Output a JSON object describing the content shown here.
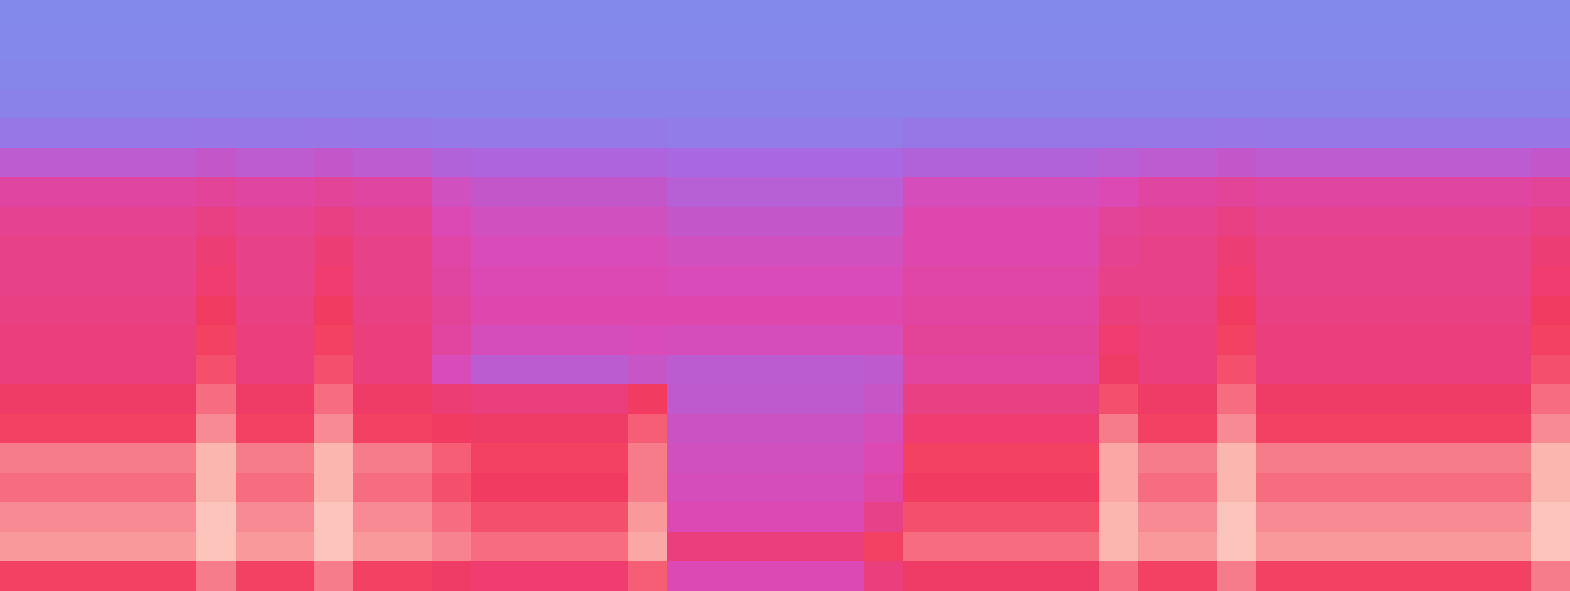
{
  "chart_data": {
    "type": "heatmap",
    "tick_labels": false,
    "xlim": [
      0,
      40
    ],
    "ylim": [
      0,
      20
    ],
    "zlim": [
      0,
      100
    ],
    "colors": [
      "#7d8eea",
      "#a868e2",
      "#dc48b4",
      "#f23a5c",
      "#fff0d8"
    ],
    "values": [
      [
        3,
        4,
        5,
        8,
        15,
        35,
        55,
        60,
        62,
        62,
        64,
        66,
        66,
        72,
        76,
        84,
        82,
        86,
        88,
        76
      ],
      [
        3,
        4,
        5,
        8,
        15,
        35,
        55,
        60,
        62,
        62,
        64,
        66,
        66,
        72,
        76,
        84,
        82,
        86,
        88,
        76
      ],
      [
        3,
        4,
        5,
        8,
        15,
        35,
        55,
        60,
        62,
        62,
        64,
        66,
        66,
        72,
        76,
        84,
        82,
        86,
        88,
        76
      ],
      [
        3,
        4,
        5,
        8,
        15,
        35,
        55,
        60,
        62,
        62,
        64,
        66,
        66,
        72,
        76,
        84,
        82,
        86,
        88,
        76
      ],
      [
        3,
        4,
        5,
        8,
        15,
        35,
        55,
        60,
        62,
        62,
        64,
        66,
        66,
        72,
        76,
        84,
        82,
        86,
        88,
        76
      ],
      [
        3,
        4,
        5,
        8,
        16,
        38,
        58,
        64,
        68,
        70,
        74,
        76,
        78,
        82,
        86,
        92,
        92,
        94,
        94,
        84
      ],
      [
        3,
        4,
        5,
        8,
        15,
        35,
        55,
        60,
        62,
        62,
        64,
        66,
        66,
        72,
        76,
        84,
        82,
        86,
        88,
        76
      ],
      [
        3,
        4,
        5,
        8,
        15,
        35,
        55,
        60,
        62,
        62,
        64,
        66,
        66,
        72,
        76,
        84,
        82,
        86,
        88,
        76
      ],
      [
        3,
        4,
        5,
        8,
        16,
        38,
        58,
        64,
        68,
        70,
        74,
        76,
        78,
        82,
        86,
        92,
        92,
        94,
        94,
        84
      ],
      [
        3,
        4,
        5,
        8,
        15,
        35,
        55,
        60,
        62,
        62,
        64,
        66,
        66,
        72,
        76,
        84,
        82,
        86,
        88,
        76
      ],
      [
        3,
        4,
        5,
        8,
        15,
        35,
        55,
        60,
        62,
        62,
        64,
        66,
        66,
        72,
        76,
        84,
        82,
        86,
        88,
        76
      ],
      [
        3,
        4,
        5,
        8,
        14,
        30,
        44,
        50,
        54,
        55,
        58,
        56,
        48,
        68,
        74,
        80,
        78,
        82,
        85,
        72
      ],
      [
        3,
        4,
        5,
        8,
        14,
        28,
        38,
        44,
        48,
        50,
        52,
        46,
        34,
        66,
        72,
        76,
        74,
        78,
        82,
        70
      ],
      [
        3,
        4,
        5,
        8,
        14,
        28,
        38,
        44,
        48,
        50,
        52,
        46,
        34,
        66,
        72,
        76,
        74,
        78,
        82,
        70
      ],
      [
        3,
        4,
        5,
        8,
        14,
        28,
        38,
        44,
        48,
        50,
        52,
        46,
        34,
        66,
        72,
        76,
        74,
        78,
        82,
        70
      ],
      [
        3,
        4,
        5,
        8,
        14,
        28,
        38,
        44,
        48,
        50,
        52,
        46,
        34,
        66,
        72,
        76,
        74,
        78,
        82,
        70
      ],
      [
        3,
        4,
        5,
        8,
        14,
        28,
        38,
        44,
        48,
        50,
        52,
        48,
        40,
        74,
        80,
        84,
        84,
        88,
        90,
        80
      ],
      [
        3,
        4,
        5,
        8,
        12,
        25,
        32,
        38,
        44,
        48,
        52,
        46,
        34,
        36,
        42,
        44,
        46,
        50,
        66,
        50
      ],
      [
        3,
        4,
        5,
        8,
        12,
        25,
        32,
        38,
        44,
        48,
        52,
        46,
        34,
        36,
        42,
        44,
        46,
        50,
        66,
        50
      ],
      [
        3,
        4,
        5,
        8,
        12,
        25,
        32,
        38,
        44,
        48,
        52,
        46,
        34,
        36,
        42,
        44,
        46,
        50,
        66,
        50
      ],
      [
        3,
        4,
        5,
        8,
        12,
        25,
        32,
        38,
        44,
        48,
        52,
        46,
        34,
        36,
        42,
        44,
        46,
        50,
        66,
        50
      ],
      [
        3,
        4,
        5,
        8,
        12,
        25,
        32,
        38,
        44,
        48,
        52,
        46,
        34,
        36,
        42,
        44,
        46,
        50,
        66,
        50
      ],
      [
        3,
        4,
        5,
        8,
        12,
        25,
        32,
        38,
        44,
        48,
        52,
        46,
        36,
        40,
        46,
        50,
        54,
        62,
        76,
        66
      ],
      [
        3,
        4,
        5,
        8,
        15,
        30,
        46,
        52,
        52,
        54,
        56,
        58,
        56,
        64,
        70,
        76,
        74,
        78,
        82,
        72
      ],
      [
        3,
        4,
        5,
        8,
        15,
        30,
        46,
        52,
        52,
        54,
        56,
        58,
        56,
        64,
        70,
        76,
        74,
        78,
        82,
        72
      ],
      [
        3,
        4,
        5,
        8,
        15,
        30,
        46,
        52,
        52,
        54,
        56,
        58,
        56,
        64,
        70,
        76,
        74,
        78,
        82,
        72
      ],
      [
        3,
        4,
        5,
        8,
        15,
        30,
        46,
        52,
        52,
        54,
        56,
        58,
        56,
        64,
        70,
        76,
        74,
        78,
        82,
        72
      ],
      [
        3,
        4,
        5,
        8,
        15,
        30,
        46,
        52,
        52,
        54,
        56,
        58,
        56,
        64,
        70,
        76,
        74,
        78,
        82,
        72
      ],
      [
        3,
        4,
        5,
        8,
        15,
        32,
        50,
        58,
        60,
        62,
        66,
        70,
        72,
        78,
        84,
        90,
        90,
        92,
        92,
        82
      ],
      [
        3,
        4,
        5,
        8,
        15,
        35,
        55,
        60,
        62,
        62,
        64,
        66,
        66,
        72,
        76,
        84,
        82,
        86,
        88,
        76
      ],
      [
        3,
        4,
        5,
        8,
        15,
        35,
        55,
        60,
        62,
        62,
        64,
        66,
        66,
        72,
        76,
        84,
        82,
        86,
        88,
        76
      ],
      [
        3,
        4,
        5,
        8,
        16,
        38,
        58,
        64,
        68,
        70,
        74,
        76,
        78,
        82,
        86,
        92,
        92,
        94,
        94,
        84
      ],
      [
        3,
        4,
        5,
        8,
        15,
        35,
        55,
        60,
        62,
        62,
        64,
        66,
        66,
        72,
        76,
        84,
        82,
        86,
        88,
        76
      ],
      [
        3,
        4,
        5,
        8,
        15,
        35,
        55,
        60,
        62,
        62,
        64,
        66,
        66,
        72,
        76,
        84,
        82,
        86,
        88,
        76
      ],
      [
        3,
        4,
        5,
        8,
        15,
        35,
        55,
        60,
        62,
        62,
        64,
        66,
        66,
        72,
        76,
        84,
        82,
        86,
        88,
        76
      ],
      [
        3,
        4,
        5,
        8,
        15,
        35,
        55,
        60,
        62,
        62,
        64,
        66,
        66,
        72,
        76,
        84,
        82,
        86,
        88,
        76
      ],
      [
        3,
        4,
        5,
        8,
        15,
        35,
        55,
        60,
        62,
        62,
        64,
        66,
        66,
        72,
        76,
        84,
        82,
        86,
        88,
        76
      ],
      [
        3,
        4,
        5,
        8,
        15,
        35,
        55,
        60,
        62,
        62,
        64,
        66,
        66,
        72,
        76,
        84,
        82,
        86,
        88,
        76
      ],
      [
        3,
        4,
        5,
        8,
        15,
        35,
        55,
        60,
        62,
        62,
        64,
        66,
        66,
        72,
        76,
        84,
        82,
        86,
        88,
        76
      ],
      [
        3,
        4,
        5,
        8,
        16,
        38,
        58,
        64,
        68,
        70,
        74,
        76,
        78,
        82,
        86,
        92,
        92,
        94,
        94,
        84
      ]
    ]
  }
}
